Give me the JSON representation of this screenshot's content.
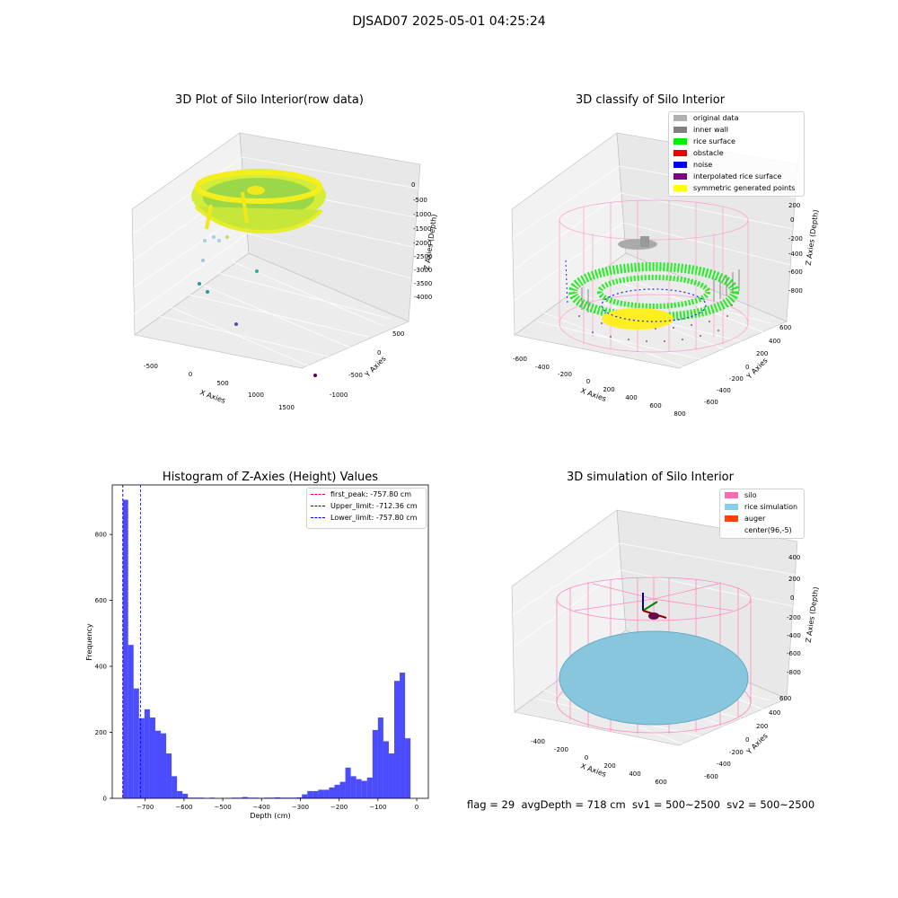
{
  "figure": {
    "suptitle": "DJSAD07 2025-05-01 04:25:24",
    "footer": "flag = 29  avgDepth = 718 cm  sv1 = 500~2500  sv2 = 500~2500"
  },
  "panels": {
    "raw": {
      "title": "3D Plot of Silo Interior(row data)",
      "xlabel": "X Axies",
      "ylabel": "Y Axies",
      "zlabel": "Z Axies (Depth)",
      "xticks": [
        "-500",
        "0",
        "500",
        "1000",
        "1500"
      ],
      "yticks": [
        "500",
        "0",
        "-500",
        "-1000"
      ],
      "zticks": [
        "0",
        "-500",
        "-1000",
        "-1500",
        "-2000",
        "-2500",
        "-3000",
        "-3500",
        "-4000"
      ]
    },
    "classify": {
      "title": "3D classify of Silo Interior",
      "xlabel": "X Axies",
      "ylabel": "Y Axies",
      "zlabel": "Z Axies (Depth)",
      "xticks": [
        "-600",
        "-400",
        "-200",
        "0",
        "200",
        "400",
        "600",
        "800"
      ],
      "yticks": [
        "600",
        "400",
        "200",
        "0",
        "-200",
        "-400",
        "-600"
      ],
      "zticks": [
        "200",
        "0",
        "-200",
        "-400",
        "-600",
        "-800"
      ],
      "legend": [
        {
          "label": "original data",
          "color": "#b0b0b0"
        },
        {
          "label": "inner wall",
          "color": "#808080"
        },
        {
          "label": "rice surface",
          "color": "#00ee00"
        },
        {
          "label": "obstacle",
          "color": "#ee0000"
        },
        {
          "label": "noise",
          "color": "#0000ee"
        },
        {
          "label": "interpolated rice surface",
          "color": "#800080"
        },
        {
          "label": "symmetric generated points",
          "color": "#ffff00"
        }
      ]
    },
    "simulation": {
      "title": "3D simulation of Silo Interior",
      "xlabel": "X Axies",
      "ylabel": "Y Axies",
      "zlabel": "Z Axies (Depth)",
      "xticks": [
        "-400",
        "-200",
        "0",
        "200",
        "400",
        "600"
      ],
      "yticks": [
        "600",
        "400",
        "200",
        "0",
        "-200",
        "-400",
        "-600"
      ],
      "zticks": [
        "400",
        "200",
        "0",
        "-200",
        "-400",
        "-600",
        "-800"
      ],
      "legend": [
        {
          "label": "silo",
          "color": "#ff69b4"
        },
        {
          "label": "rice simulation",
          "color": "#87ceeb"
        },
        {
          "label": "auger",
          "color": "#ff4500"
        },
        {
          "label": "center(96,-5)",
          "color": ""
        }
      ]
    }
  },
  "chart_data": [
    {
      "type": "bar",
      "title": "Histogram of Z-Axies (Height) Values",
      "xlabel": "Depth (cm)",
      "ylabel": "Frequency",
      "xlim": [
        -785,
        30
      ],
      "ylim": [
        0,
        950
      ],
      "xticks": [
        -700,
        -600,
        -500,
        -400,
        -300,
        -200,
        -100,
        0
      ],
      "yticks": [
        0,
        200,
        400,
        600,
        800
      ],
      "bar_color": "#0000ff",
      "bin_edges": [
        -758,
        -744,
        -730,
        -716,
        -702,
        -688,
        -674,
        -660,
        -646,
        -632,
        -618,
        -604,
        -590,
        -576,
        -562,
        -548,
        -534,
        -520,
        -506,
        -492,
        -478,
        -464,
        -450,
        -436,
        -422,
        -408,
        -394,
        -380,
        -366,
        -352,
        -338,
        -324,
        -310,
        -296,
        -282,
        -268,
        -254,
        -240,
        -226,
        -212,
        -198,
        -184,
        -170,
        -156,
        -142,
        -128,
        -114,
        -100,
        -86,
        -72,
        -58,
        -44,
        -30,
        -16,
        -2
      ],
      "values": [
        905,
        465,
        333,
        243,
        270,
        245,
        205,
        197,
        136,
        67,
        22,
        14,
        2,
        2,
        2,
        1,
        2,
        0,
        1,
        1,
        2,
        2,
        4,
        2,
        2,
        1,
        2,
        2,
        3,
        2,
        2,
        2,
        3,
        12,
        22,
        22,
        26,
        26,
        33,
        41,
        50,
        93,
        67,
        58,
        53,
        63,
        207,
        245,
        173,
        136,
        356,
        381,
        182,
        0
      ],
      "legend": [
        {
          "label": "first_peak: -757.80 cm",
          "color": "#ff0000",
          "value": -757.8
        },
        {
          "label": "Upper_limit: -712.36 cm",
          "color": "#0000ff",
          "value": -712.36
        },
        {
          "label": "Lower_limit: -757.80 cm",
          "color": "#0000ff",
          "value": -757.8
        }
      ]
    }
  ]
}
